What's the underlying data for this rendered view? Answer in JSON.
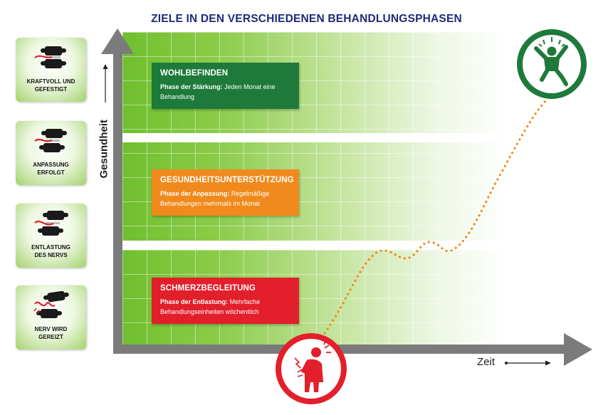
{
  "title": "ZIELE IN DEN VERSCHIEDENEN BEHANDLUNGSPHASEN",
  "axes": {
    "y_label": "Gesundheit",
    "x_label": "Zeit"
  },
  "stages": [
    {
      "line1": "KRAFTVOLL UND",
      "line2": "GEFESTIGT"
    },
    {
      "line1": "ANPASSUNG",
      "line2": "ERFOLGT"
    },
    {
      "line1": "ENTLASTUNG",
      "line2": "DES NERVS"
    },
    {
      "line1": "NERV WIRD",
      "line2": "GEREIZT"
    }
  ],
  "phases": [
    {
      "heading": "WOHLBEFINDEN",
      "phase_label": "Phase der Stärkung:",
      "text": "Jeden Monat eine Behandlung",
      "color": "#1e7a3a"
    },
    {
      "heading": "GESUNDHEITSUNTERSTÜTZUNG",
      "phase_label": "Phase der Anpassung:",
      "text": "Regelmäßige Behandlungen mehrmals im Monat",
      "color": "#f08a1d"
    },
    {
      "heading": "SCHMERZBEGLEITUNG",
      "phase_label": "Phase der Entlastung:",
      "text": "Mehrfache Behandlungseinheiten wöchentlich",
      "color": "#e21f2b"
    }
  ],
  "icons": {
    "start": "person-in-pain-icon",
    "end": "jumping-happy-person-icon",
    "stage": "vertebra-nerve-icon"
  },
  "colors": {
    "curve": "#f08a1d",
    "title": "#1f2b7a",
    "axis": "#7b7b7b"
  }
}
